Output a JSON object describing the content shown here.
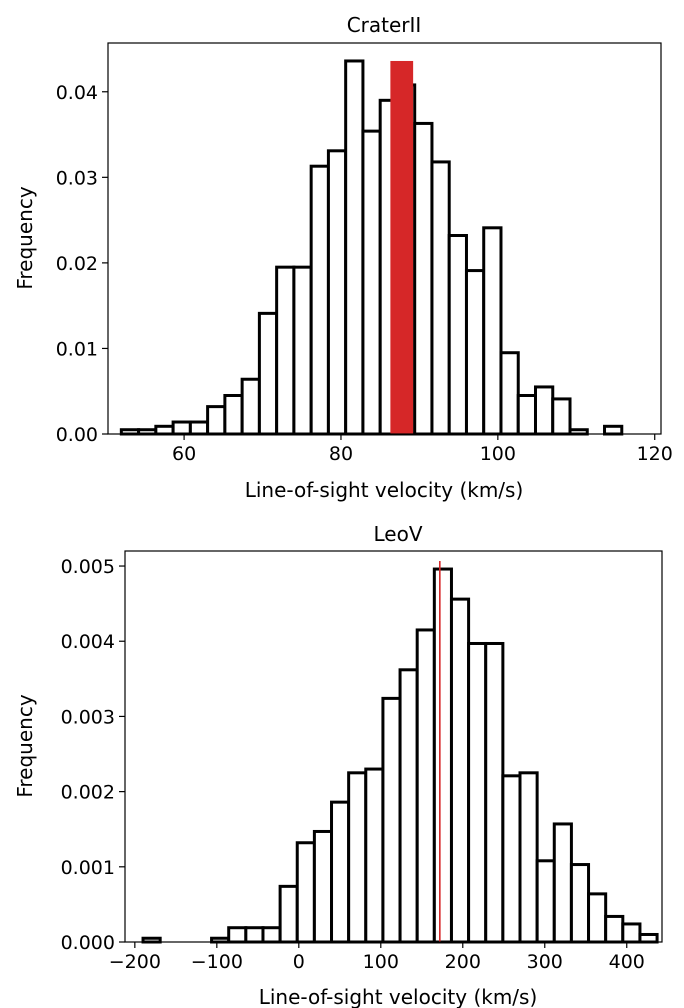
{
  "chart_data": [
    {
      "type": "bar",
      "title": "CraterII",
      "xlabel": "Line-of-sight velocity (km/s)",
      "ylabel": "Frequency",
      "xlim": [
        50.3,
        120.8
      ],
      "ylim": [
        0,
        0.0457
      ],
      "xticks": [
        "60",
        "80",
        "100",
        "120"
      ],
      "yticks": [
        "0.00",
        "0.01",
        "0.02",
        "0.03",
        "0.04"
      ],
      "bin_start": 52.0,
      "bin_width": 2.2,
      "values": [
        0.0005,
        0.0005,
        0.0009,
        0.0014,
        0.0014,
        0.0032,
        0.0045,
        0.0064,
        0.0141,
        0.0195,
        0.0195,
        0.0313,
        0.0331,
        0.0436,
        0.0354,
        0.039,
        0.0408,
        0.0363,
        0.0318,
        0.0232,
        0.0191,
        0.0241,
        0.0095,
        0.0045,
        0.0055,
        0.0041,
        0.0005,
        0.0,
        0.0009
      ],
      "highlight": {
        "x_range": [
          86.3,
          89.2
        ],
        "height": 0.0436,
        "color": "#d62728"
      },
      "grid": false
    },
    {
      "type": "bar",
      "title": "LeoV",
      "xlabel": "Line-of-sight velocity (km/s)",
      "ylabel": "Frequency",
      "xlim": [
        -212,
        443
      ],
      "ylim": [
        0,
        0.0052
      ],
      "xticks": [
        "−200",
        "−100",
        "0",
        "100",
        "200",
        "300",
        "400"
      ],
      "yticks": [
        "0.000",
        "0.001",
        "0.002",
        "0.003",
        "0.004",
        "0.005"
      ],
      "bin_start": -190,
      "bin_width": 20.9,
      "values": [
        5e-05,
        0.0,
        0.0,
        0.0,
        5e-05,
        0.00019,
        0.00019,
        0.00019,
        0.00074,
        0.00132,
        0.00147,
        0.00186,
        0.00225,
        0.0023,
        0.00324,
        0.00362,
        0.00415,
        0.00496,
        0.00456,
        0.00397,
        0.00397,
        0.00221,
        0.00225,
        0.00108,
        0.00157,
        0.00103,
        0.00064,
        0.00034,
        0.00024,
        0.0001
      ],
      "highlight": {
        "x_value": 172,
        "color": "#d62728"
      },
      "grid": false
    }
  ]
}
